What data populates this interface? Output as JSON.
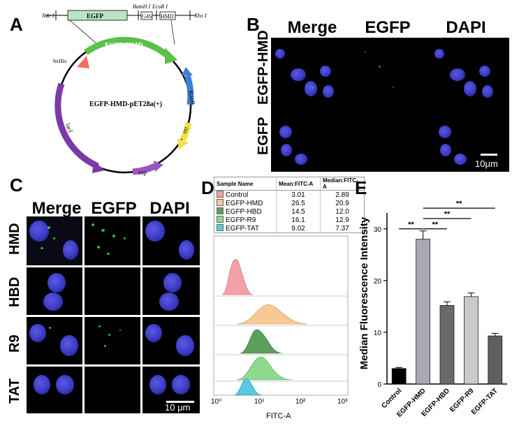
{
  "panels": {
    "A": "A",
    "B": "B",
    "C": "C",
    "D": "D",
    "E": "E"
  },
  "plasmid": {
    "name": "EGFP-HMD-pET28a(+)",
    "insert_top": {
      "nde": "Nde I",
      "egfp_box": "EGFP",
      "bam": "BamH I",
      "g4s": "G4S",
      "eco": "EcoR I",
      "hmd_box": "HMD",
      "xho": "Xho I"
    },
    "features": {
      "his": "6xHis",
      "egfp_hmd": "EGFP-HMD",
      "kanr": "KanR",
      "ori": "ori",
      "rop": "rop",
      "laci": "lacI"
    },
    "colors": {
      "egfp_hmd": "#5cc04a",
      "his": "#f07060",
      "kanr": "#3f7fd6",
      "ori": "#f2e04a",
      "rop": "#9955c0",
      "laci": "#7a3aa8",
      "egfp_box": "#b8e6c4"
    }
  },
  "panel_b": {
    "columns": [
      "Merge",
      "EGFP",
      "DAPI"
    ],
    "rows": [
      "EGFP-HMD",
      "EGFP"
    ],
    "scale": "10μm"
  },
  "panel_c": {
    "columns": [
      "Merge",
      "EGFP",
      "DAPI"
    ],
    "rows": [
      "HMD",
      "HBD",
      "R9",
      "TAT"
    ],
    "scale": "10 μm"
  },
  "panel_d": {
    "table": {
      "headers": [
        "Sample Name",
        "Mean:FITC-A",
        "Median:FITC-A"
      ],
      "rows": [
        {
          "name": "Control",
          "mean": "3.01",
          "median": "2.89",
          "color": "#f4a0a8"
        },
        {
          "name": "EGFP-HMD",
          "mean": "26.5",
          "median": "20.9",
          "color": "#f8c896"
        },
        {
          "name": "EGFP-HBD",
          "mean": "14.5",
          "median": "12.0",
          "color": "#5aa05a"
        },
        {
          "name": "EGFP-R9",
          "mean": "16.1",
          "median": "12.9",
          "color": "#90d890"
        },
        {
          "name": "EGFP-TAT",
          "mean": "9.02",
          "median": "7.37",
          "color": "#5ac8e0"
        }
      ]
    },
    "xlabel": "FITC-A",
    "ticks": [
      "10⁰",
      "10¹",
      "10²",
      "10³"
    ]
  },
  "chart_data": {
    "type": "bar",
    "categories": [
      "Control",
      "EGFP-HMD",
      "EGFP-HBD",
      "EGFP-R9",
      "EGFP-TAT"
    ],
    "values": [
      3.0,
      28.0,
      15.2,
      16.9,
      9.3
    ],
    "errors": [
      0.2,
      1.6,
      0.7,
      0.7,
      0.5
    ],
    "colors": [
      "#000000",
      "#a7a7b6",
      "#6a6a6e",
      "#c9cbcb",
      "#5f5f63"
    ],
    "ylabel": "Median Fluorescence Intensity",
    "ylim": [
      0,
      30
    ],
    "yticks": [
      0,
      10,
      20,
      30
    ],
    "significance": [
      {
        "from": 0,
        "to": 1,
        "label": "**"
      },
      {
        "from": 1,
        "to": 2,
        "label": "**"
      },
      {
        "from": 1,
        "to": 3,
        "label": "**"
      },
      {
        "from": 1,
        "to": 4,
        "label": "**"
      }
    ]
  }
}
